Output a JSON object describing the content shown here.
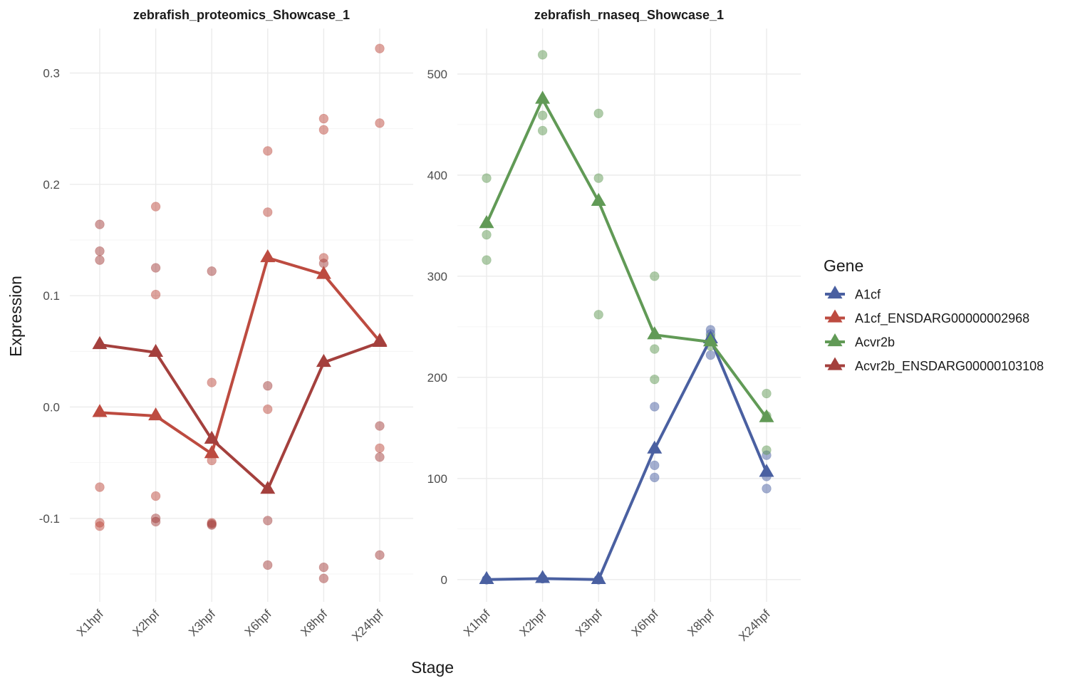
{
  "chart_data": {
    "type": "line",
    "xlabel": "Stage",
    "ylabel": "Expression",
    "legend": {
      "title": "Gene",
      "placement": "right",
      "entries": [
        {
          "name": "A1cf",
          "color": "#4a60a1"
        },
        {
          "name": "A1cf_ENSDARG00000002968",
          "color": "#bd4b40"
        },
        {
          "name": "Acvr2b",
          "color": "#619a56"
        },
        {
          "name": "Acvr2b_ENSDARG00000103108",
          "color": "#a4403d"
        }
      ]
    },
    "categories": [
      "X1hpf",
      "X2hpf",
      "X3hpf",
      "X6hpf",
      "X8hpf",
      "X24hpf"
    ],
    "grid": true,
    "panels": [
      {
        "title": "zebrafish_proteomics_Showcase_1",
        "ylim": [
          -0.175,
          0.34
        ],
        "yticks": [
          -0.1,
          0.0,
          0.1,
          0.2,
          0.3
        ],
        "ytick_labels": [
          "-0.1",
          "0.0",
          "0.1",
          "0.2",
          "0.3"
        ],
        "series": [
          {
            "name": "A1cf_ENSDARG00000002968",
            "color": "#bd4b40",
            "mean": [
              -0.005,
              -0.008,
              -0.042,
              0.134,
              0.119,
              0.059
            ],
            "points": [
              [
                -0.072,
                -0.104,
                -0.107
              ],
              [
                0.18,
                0.101,
                -0.08
              ],
              [
                0.022,
                -0.048,
                -0.104
              ],
              [
                0.23,
                0.175,
                -0.002
              ],
              [
                0.259,
                0.249,
                0.134
              ],
              [
                0.322,
                0.255,
                -0.037
              ]
            ]
          },
          {
            "name": "Acvr2b_ENSDARG00000103108",
            "color": "#a4403d",
            "mean": [
              0.056,
              0.049,
              -0.029,
              -0.074,
              0.04,
              0.058
            ],
            "points": [
              [
                0.164,
                0.14,
                0.132
              ],
              [
                0.125,
                -0.1,
                -0.103
              ],
              [
                0.122,
                -0.106,
                -0.105
              ],
              [
                0.019,
                -0.102,
                -0.142
              ],
              [
                0.129,
                -0.144,
                -0.154
              ],
              [
                -0.017,
                -0.045,
                -0.133
              ]
            ]
          }
        ]
      },
      {
        "title": "zebrafish_rnaseq_Showcase_1",
        "ylim": [
          -22,
          545
        ],
        "yticks": [
          0,
          100,
          200,
          300,
          400,
          500
        ],
        "ytick_labels": [
          "0",
          "100",
          "200",
          "300",
          "400",
          "500"
        ],
        "series": [
          {
            "name": "A1cf",
            "color": "#4a60a1",
            "mean": [
              0,
              1,
              0,
              129,
              238,
              106
            ],
            "points": [
              [
                0,
                0,
                0
              ],
              [
                1,
                1,
                1
              ],
              [
                0,
                0,
                0
              ],
              [
                171,
                113,
                101
              ],
              [
                247,
                243,
                222
              ],
              [
                123,
                102,
                90
              ]
            ]
          },
          {
            "name": "Acvr2b",
            "color": "#619a56",
            "mean": [
              352,
              475,
              374,
              242,
              235,
              160
            ],
            "points": [
              [
                397,
                341,
                316
              ],
              [
                519,
                459,
                444
              ],
              [
                461,
                397,
                262
              ],
              [
                300,
                228,
                198
              ],
              [
                240,
                236,
                231
              ],
              [
                184,
                162,
                128
              ]
            ]
          }
        ]
      }
    ]
  }
}
